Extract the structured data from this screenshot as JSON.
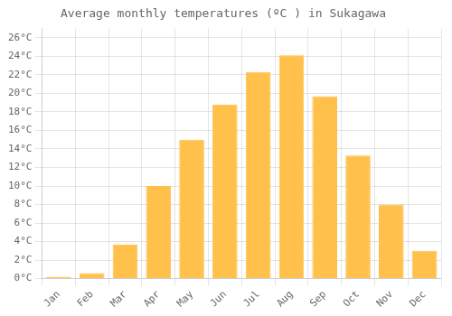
{
  "chart_data": {
    "type": "bar",
    "title": "Average monthly temperatures (ºC ) in Sukagawa",
    "categories": [
      "Jan",
      "Feb",
      "Mar",
      "Apr",
      "May",
      "Jun",
      "Jul",
      "Aug",
      "Sep",
      "Oct",
      "Nov",
      "Dec"
    ],
    "values": [
      0.2,
      0.6,
      3.7,
      10.0,
      15.0,
      18.8,
      22.3,
      24.1,
      19.7,
      13.3,
      8.0,
      3.0
    ],
    "color": "#FFC04C",
    "ylim": [
      0,
      27
    ],
    "yticks": [
      {
        "value": 0,
        "label": "0°C"
      },
      {
        "value": 2,
        "label": "2°C"
      },
      {
        "value": 4,
        "label": "4°C"
      },
      {
        "value": 6,
        "label": "6°C"
      },
      {
        "value": 8,
        "label": "8°C"
      },
      {
        "value": 10,
        "label": "10°C"
      },
      {
        "value": 12,
        "label": "12°C"
      },
      {
        "value": 14,
        "label": "14°C"
      },
      {
        "value": 16,
        "label": "16°C"
      },
      {
        "value": 18,
        "label": "18°C"
      },
      {
        "value": 20,
        "label": "20°C"
      },
      {
        "value": 22,
        "label": "22°C"
      },
      {
        "value": 24,
        "label": "24°C"
      },
      {
        "value": 26,
        "label": "26°C"
      }
    ],
    "grid": true
  }
}
